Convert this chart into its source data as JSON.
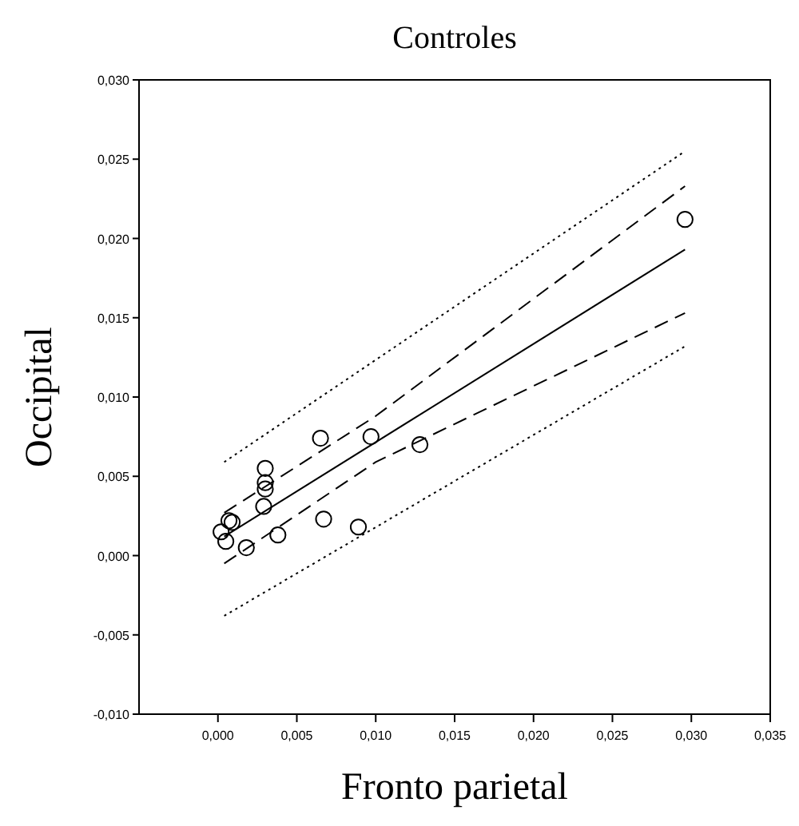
{
  "chart_data": {
    "type": "scatter",
    "title": "Controles",
    "xlabel": "Fronto parietal",
    "ylabel": "Occipital",
    "xlim": [
      -0.005,
      0.035
    ],
    "ylim": [
      -0.01,
      0.03
    ],
    "xticks": [
      {
        "value": 0,
        "label": "0,000"
      },
      {
        "value": 0.005,
        "label": "0,005"
      },
      {
        "value": 0.01,
        "label": "0,010"
      },
      {
        "value": 0.015,
        "label": "0,015"
      },
      {
        "value": 0.02,
        "label": "0,020"
      },
      {
        "value": 0.025,
        "label": "0,025"
      },
      {
        "value": 0.03,
        "label": "0,030"
      },
      {
        "value": 0.035,
        "label": "0,035"
      }
    ],
    "yticks": [
      {
        "value": -0.01,
        "label": "-0,010"
      },
      {
        "value": -0.005,
        "label": "-0,005"
      },
      {
        "value": 0,
        "label": "0,000"
      },
      {
        "value": 0.005,
        "label": "0,005"
      },
      {
        "value": 0.01,
        "label": "0,010"
      },
      {
        "value": 0.015,
        "label": "0,015"
      },
      {
        "value": 0.02,
        "label": "0,020"
      },
      {
        "value": 0.025,
        "label": "0,025"
      },
      {
        "value": 0.03,
        "label": "0,030"
      }
    ],
    "grid": false,
    "series": [
      {
        "marker": "circle",
        "color": "#000000",
        "x": [
          0.0296,
          0.0065,
          0.0097,
          0.0128,
          0.003,
          0.003,
          0.003,
          0.0029,
          0.0007,
          0.0009,
          0.0002,
          0.0005,
          0.0018,
          0.0038,
          0.0067,
          0.0089
        ],
        "values": [
          0.0212,
          0.0074,
          0.0075,
          0.007,
          0.0055,
          0.0046,
          0.0042,
          0.0031,
          0.0022,
          0.0021,
          0.0015,
          0.0009,
          0.0005,
          0.0013,
          0.0023,
          0.0018
        ]
      },
      {
        "type": "line",
        "marker": "none",
        "line_style": "solid",
        "color": "#000000",
        "x": [
          0.0004,
          0.0296
        ],
        "values": [
          0.0012,
          0.0193
        ]
      },
      {
        "type": "line",
        "marker": "none",
        "line_style": "dashed",
        "color": "#000000",
        "x": [
          0.0004,
          0.01,
          0.0296
        ],
        "values": [
          0.0027,
          0.0088,
          0.0233
        ]
      },
      {
        "type": "line",
        "marker": "none",
        "line_style": "dashed",
        "color": "#000000",
        "x": [
          0.0004,
          0.01,
          0.0296
        ],
        "values": [
          -0.0005,
          0.0059,
          0.0153
        ]
      },
      {
        "type": "line",
        "marker": "none",
        "line_style": "dotted",
        "color": "#000000",
        "x": [
          0.0004,
          0.0296
        ],
        "values": [
          0.0059,
          0.0255
        ]
      },
      {
        "type": "line",
        "marker": "none",
        "line_style": "dotted",
        "color": "#000000",
        "x": [
          0.0004,
          0.0296
        ],
        "values": [
          -0.0038,
          0.0132
        ]
      }
    ]
  }
}
